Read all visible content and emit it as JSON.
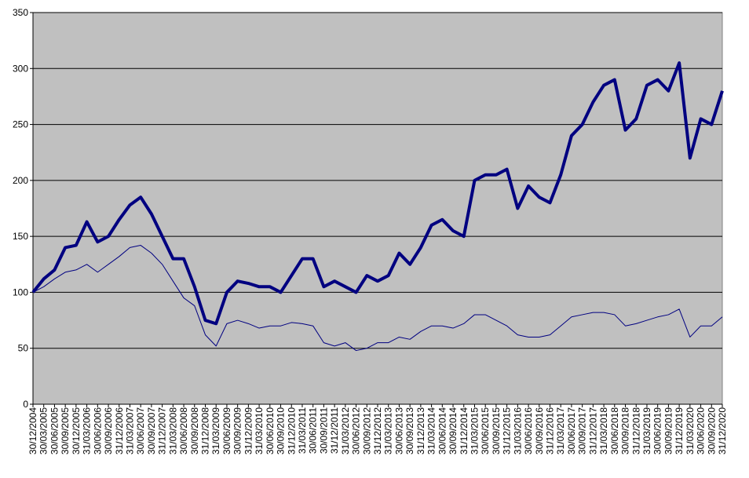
{
  "chart_data": {
    "type": "line",
    "categories": [
      "30/12/2004",
      "30/03/2005",
      "30/06/2005",
      "30/09/2005",
      "30/12/2005",
      "31/03/2006",
      "30/06/2006",
      "30/09/2006",
      "31/12/2006",
      "31/03/2007",
      "30/06/2007",
      "30/09/2007",
      "31/12/2007",
      "31/03/2008",
      "30/06/2008",
      "30/09/2008",
      "31/12/2008",
      "31/03/2009",
      "30/06/2009",
      "30/09/2009",
      "31/12/2009",
      "31/03/2010",
      "30/06/2010",
      "30/09/2010",
      "31/12/2010",
      "31/03/2011",
      "30/06/2011",
      "30/09/2011",
      "31/12/2011",
      "31/03/2012",
      "30/06/2012",
      "30/09/2012",
      "31/12/2012",
      "31/03/2013",
      "30/06/2013",
      "30/09/2013",
      "31/12/2013",
      "31/03/2014",
      "30/06/2014",
      "30/09/2014",
      "31/12/2014",
      "31/03/2015",
      "30/06/2015",
      "30/09/2015",
      "31/12/2015",
      "31/03/2016",
      "30/06/2016",
      "30/09/2016",
      "31/12/2016",
      "31/03/2017",
      "30/06/2017",
      "30/09/2017",
      "31/12/2017",
      "31/03/2018",
      "30/06/2018",
      "30/09/2018",
      "31/12/2018",
      "31/03/2019",
      "30/06/2019",
      "30/09/2019",
      "31/12/2019",
      "31/03/2020",
      "30/06/2020",
      "30/09/2020",
      "31/12/2020"
    ],
    "series": [
      {
        "color": "#000080",
        "width": 4,
        "values": [
          100,
          112,
          120,
          140,
          142,
          163,
          145,
          150,
          165,
          178,
          185,
          170,
          150,
          130,
          130,
          105,
          75,
          72,
          100,
          110,
          108,
          105,
          105,
          100,
          115,
          130,
          130,
          105,
          110,
          105,
          100,
          115,
          110,
          115,
          135,
          125,
          140,
          160,
          165,
          155,
          150,
          200,
          205,
          205,
          210,
          175,
          195,
          185,
          180,
          205,
          240,
          250,
          270,
          285,
          290,
          245,
          255,
          285,
          290,
          280,
          305,
          220,
          255,
          250,
          280
        ]
      },
      {
        "color": "#000080",
        "width": 1,
        "values": [
          100,
          105,
          112,
          118,
          120,
          125,
          118,
          125,
          132,
          140,
          142,
          135,
          125,
          110,
          95,
          88,
          62,
          52,
          72,
          75,
          72,
          68,
          70,
          70,
          73,
          72,
          70,
          55,
          52,
          55,
          48,
          50,
          55,
          55,
          60,
          58,
          65,
          70,
          70,
          68,
          72,
          80,
          80,
          75,
          70,
          62,
          60,
          60,
          62,
          70,
          78,
          80,
          82,
          82,
          80,
          70,
          72,
          75,
          78,
          80,
          85,
          60,
          70,
          70,
          78
        ]
      }
    ],
    "ylim": [
      0,
      350
    ],
    "yticks": [
      0,
      50,
      100,
      150,
      200,
      250,
      300,
      350
    ],
    "grid": true,
    "plot_background": "#c0c0c0"
  }
}
